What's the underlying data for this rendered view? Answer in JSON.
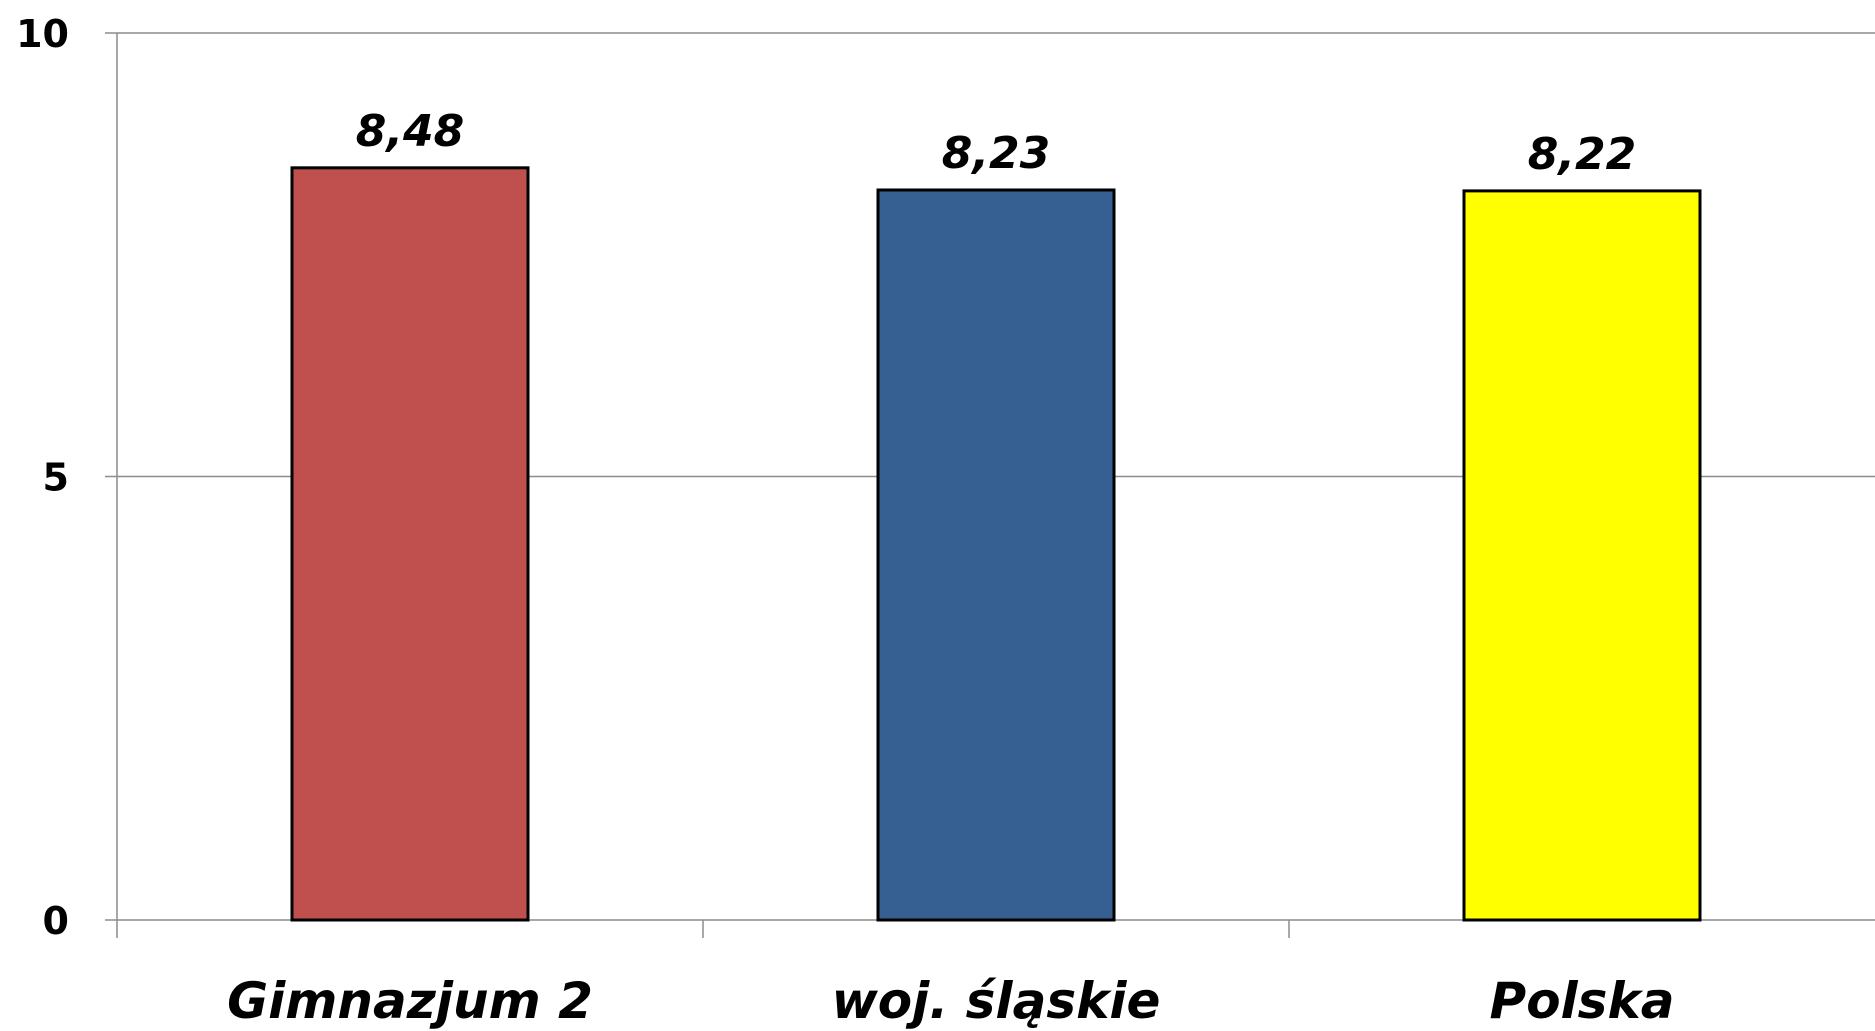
{
  "chart_data": {
    "type": "bar",
    "title": "",
    "xlabel": "",
    "ylabel": "",
    "categories": [
      "Gimnazjum 2",
      "woj. śląskie",
      "Polska"
    ],
    "values": [
      8.48,
      8.23,
      8.22
    ],
    "data_labels": [
      "8,48",
      "8,23",
      "8,22"
    ],
    "bar_colors": [
      "#C0504D",
      "#376092",
      "#FFFF00"
    ],
    "ylim": [
      0,
      10
    ],
    "yticks": [
      0,
      5,
      10
    ],
    "ytick_labels": [
      "0",
      "5",
      "10"
    ],
    "grid": true,
    "legend": "none"
  }
}
